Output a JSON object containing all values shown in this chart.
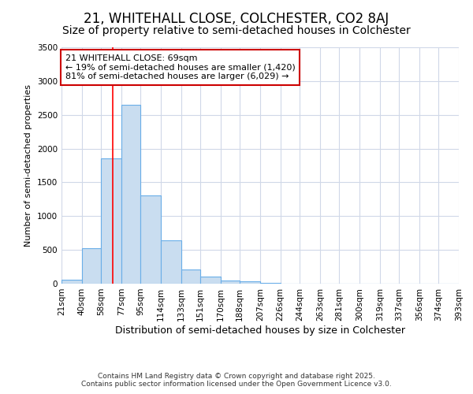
{
  "title1": "21, WHITEHALL CLOSE, COLCHESTER, CO2 8AJ",
  "title2": "Size of property relative to semi-detached houses in Colchester",
  "xlabel": "Distribution of semi-detached houses by size in Colchester",
  "ylabel": "Number of semi-detached properties",
  "bin_edges": [
    21,
    40,
    58,
    77,
    95,
    114,
    133,
    151,
    170,
    188,
    207,
    226,
    244,
    263,
    281,
    300,
    319,
    337,
    356,
    374,
    393
  ],
  "bar_heights": [
    55,
    530,
    1850,
    2650,
    1310,
    640,
    210,
    100,
    45,
    30,
    15,
    5,
    5,
    5,
    5,
    5,
    5,
    5,
    5,
    5
  ],
  "bar_color": "#c9ddf0",
  "bar_edge_color": "#6aaee8",
  "red_line_x": 69,
  "ylim": [
    0,
    3500
  ],
  "yticks": [
    0,
    500,
    1000,
    1500,
    2000,
    2500,
    3000,
    3500
  ],
  "annotation_text": "21 WHITEHALL CLOSE: 69sqm\n← 19% of semi-detached houses are smaller (1,420)\n81% of semi-detached houses are larger (6,029) →",
  "annotation_box_color": "#ffffff",
  "annotation_box_edge": "#cc0000",
  "footer1": "Contains HM Land Registry data © Crown copyright and database right 2025.",
  "footer2": "Contains public sector information licensed under the Open Government Licence v3.0.",
  "bg_color": "#ffffff",
  "plot_bg_color": "#ffffff",
  "grid_color": "#d0d8e8",
  "title_fontsize": 12,
  "subtitle_fontsize": 10,
  "tick_fontsize": 7.5,
  "ylabel_fontsize": 8,
  "xlabel_fontsize": 9
}
